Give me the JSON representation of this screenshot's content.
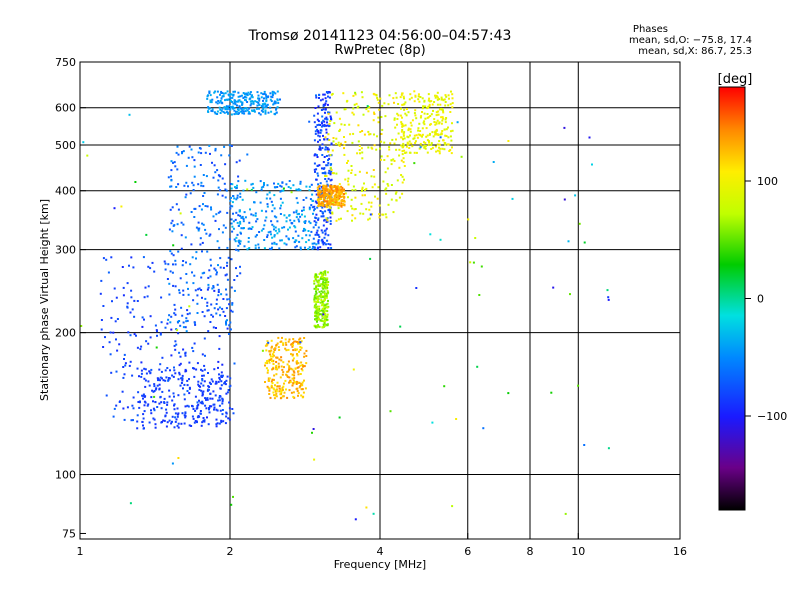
{
  "chart_data": {
    "type": "scatter",
    "title": "Tromsø 20141123 04:56:00–04:57:43",
    "subtitle": "RwPretec (8p)",
    "xlabel": "Frequency [MHz]",
    "ylabel": "Stationary phase Virtual Height [km]",
    "x_scale": "log",
    "y_scale": "log",
    "xlim": [
      1,
      16
    ],
    "ylim": [
      73,
      750
    ],
    "x_ticks": [
      1,
      2,
      4,
      6,
      8,
      10,
      16
    ],
    "x_tick_labels": [
      "1",
      "2",
      "4",
      "6",
      "8",
      "10",
      "16"
    ],
    "y_ticks": [
      75,
      100,
      200,
      300,
      400,
      500,
      600,
      750
    ],
    "y_tick_labels": [
      "75",
      "100",
      "200",
      "300",
      "400",
      "500",
      "600",
      "750"
    ],
    "grid_x": [
      2,
      4,
      6,
      8,
      10
    ],
    "grid_y": [
      100,
      200,
      300,
      400,
      500,
      600
    ],
    "stats": {
      "heading": "Phases",
      "line_o": "mean, sd,O: −75.8, 17.4",
      "line_x": "mean, sd,X:  86.7, 25.3"
    },
    "colorbar": {
      "label": "[deg]",
      "range": [
        -180,
        180
      ],
      "ticks": [
        100,
        0,
        -100
      ],
      "tick_labels": [
        "100",
        "0",
        "−100"
      ],
      "colormap": "rainbow"
    },
    "clusters": [
      {
        "trace": "o-lower",
        "f": [
          1.3,
          2.0
        ],
        "h": [
          125,
          168
        ],
        "phase": [
          -100,
          -88
        ]
      },
      {
        "trace": "o-low-cloud",
        "f": [
          1.1,
          2.05
        ],
        "h": [
          130,
          290
        ],
        "phase": [
          -105,
          -75
        ]
      },
      {
        "trace": "o-mid-cloud",
        "f": [
          1.5,
          2.1
        ],
        "h": [
          200,
          500
        ],
        "phase": [
          -95,
          -55
        ]
      },
      {
        "trace": "o-upper-arc",
        "f": [
          2.0,
          3.0
        ],
        "h": [
          300,
          420
        ],
        "phase": [
          -80,
          -35
        ]
      },
      {
        "trace": "o-vertical-3mhz",
        "f": [
          2.95,
          3.2
        ],
        "h": [
          300,
          650
        ],
        "phase": [
          -110,
          -70
        ]
      },
      {
        "trace": "o-top",
        "f": [
          1.8,
          2.5
        ],
        "h": [
          580,
          650
        ],
        "phase": [
          -70,
          -40
        ]
      },
      {
        "trace": "x-lower",
        "f": [
          2.35,
          2.85
        ],
        "h": [
          145,
          195
        ],
        "phase": [
          110,
          145
        ]
      },
      {
        "trace": "x-mid",
        "f": [
          2.95,
          3.15
        ],
        "h": [
          205,
          270
        ],
        "phase": [
          40,
          80
        ]
      },
      {
        "trace": "x-upper",
        "f": [
          3.1,
          4.5
        ],
        "h": [
          345,
          650
        ],
        "phase": [
          70,
          120
        ]
      },
      {
        "trace": "x-4-5mhz",
        "f": [
          4.4,
          5.6
        ],
        "h": [
          480,
          650
        ],
        "phase": [
          80,
          110
        ]
      },
      {
        "trace": "x-380km",
        "f": [
          3.0,
          3.4
        ],
        "h": [
          370,
          410
        ],
        "phase": [
          120,
          150
        ]
      },
      {
        "trace": "scatter",
        "f": [
          1.0,
          12.0
        ],
        "h": [
          80,
          650
        ],
        "phase": [
          -130,
          120
        ]
      }
    ]
  }
}
